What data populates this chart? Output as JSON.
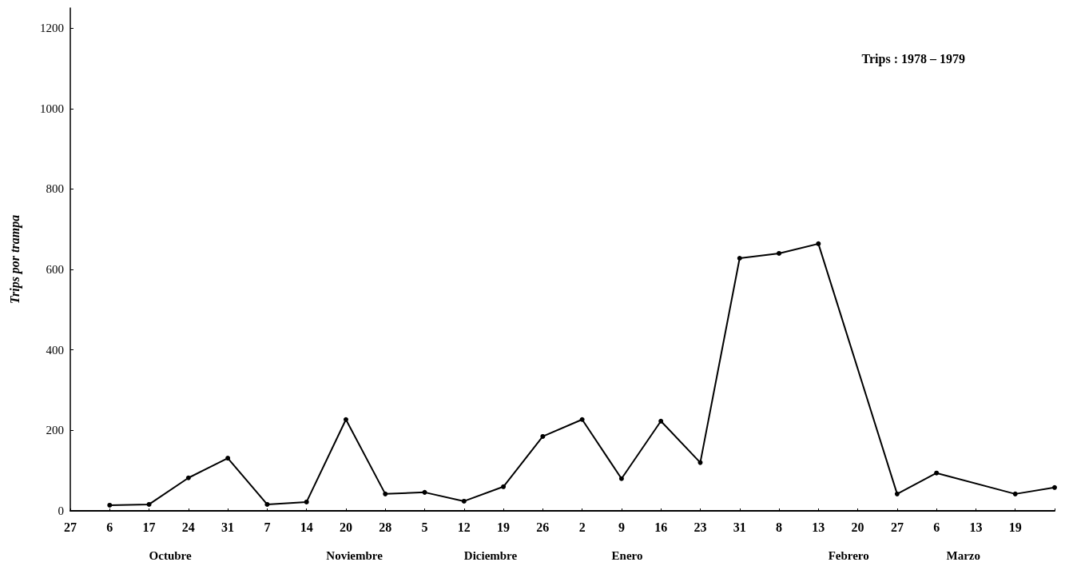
{
  "chart_data": {
    "type": "line",
    "title": "Trips : 1978 – 1979",
    "ylabel": "Trips por trampa",
    "categories": [
      "27",
      "6",
      "17",
      "24",
      "31",
      "7",
      "14",
      "20",
      "28",
      "5",
      "12",
      "19",
      "26",
      "2",
      "9",
      "16",
      "23",
      "31",
      "8",
      "13",
      "20",
      "27",
      "6",
      "13",
      "19",
      null
    ],
    "series": [
      {
        "color": "#000000",
        "values": [
          null,
          14,
          16,
          82,
          131,
          16,
          22,
          227,
          42,
          46,
          24,
          60,
          185,
          227,
          80,
          223,
          120,
          628,
          640,
          664,
          null,
          42,
          94,
          null,
          42,
          58
        ]
      }
    ],
    "ylim": [
      0,
      1250
    ],
    "yticks": [
      0,
      200,
      400,
      600,
      800,
      1000,
      1200
    ],
    "grid": false,
    "marker": "circle",
    "line_style": "solid",
    "annotations": [
      "Octubre",
      "Noviembre",
      "Diciembre",
      "Enero",
      "Febrero",
      "Marzo"
    ]
  }
}
